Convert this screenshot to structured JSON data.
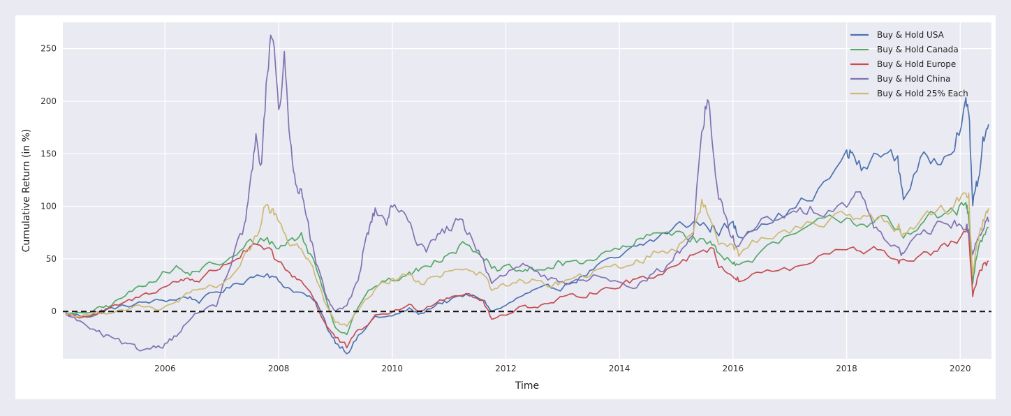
{
  "chart_data": {
    "type": "line",
    "title": "",
    "xlabel": "Time",
    "ylabel": "Cumulative Return (in %)",
    "xlim": [
      2004.2,
      2020.55
    ],
    "ylim": [
      -45,
      275
    ],
    "x_ticks": [
      2006,
      2008,
      2010,
      2012,
      2014,
      2016,
      2018,
      2020
    ],
    "x_tick_labels": [
      "2006",
      "2008",
      "2010",
      "2012",
      "2014",
      "2016",
      "2018",
      "2020"
    ],
    "y_ticks": [
      0,
      50,
      100,
      150,
      200,
      250
    ],
    "y_tick_labels": [
      "0",
      "50",
      "100",
      "150",
      "200",
      "250"
    ],
    "grid": true,
    "reference_line": {
      "y": 0,
      "style": "dashed",
      "color": "#111111"
    },
    "legend_position": "top-right",
    "series": [
      {
        "name": "Buy & Hold USA",
        "color": "#4c72b0",
        "x": [
          2004.25,
          2004.5,
          2004.8,
          2005.0,
          2005.3,
          2005.6,
          2005.9,
          2006.2,
          2006.4,
          2006.6,
          2006.9,
          2007.2,
          2007.5,
          2007.8,
          2008.0,
          2008.2,
          2008.5,
          2008.7,
          2008.85,
          2009.0,
          2009.2,
          2009.4,
          2009.7,
          2010.0,
          2010.3,
          2010.5,
          2010.8,
          2011.0,
          2011.3,
          2011.6,
          2011.75,
          2012.0,
          2012.3,
          2012.5,
          2012.8,
          2013.0,
          2013.3,
          2013.6,
          2014.0,
          2014.3,
          2014.6,
          2015.0,
          2015.3,
          2015.6,
          2015.75,
          2016.0,
          2016.1,
          2016.5,
          2017.0,
          2017.5,
          2018.0,
          2018.1,
          2018.3,
          2018.6,
          2018.9,
          2019.0,
          2019.3,
          2019.6,
          2019.9,
          2020.1,
          2020.15,
          2020.22,
          2020.3,
          2020.4,
          2020.5
        ],
        "values": [
          -2,
          -4,
          -3,
          2,
          5,
          8,
          10,
          12,
          14,
          10,
          18,
          24,
          33,
          38,
          28,
          22,
          15,
          5,
          -15,
          -28,
          -37,
          -25,
          -5,
          -5,
          2,
          -3,
          8,
          10,
          15,
          12,
          0,
          5,
          15,
          18,
          22,
          24,
          32,
          42,
          50,
          60,
          68,
          80,
          85,
          80,
          78,
          82,
          72,
          88,
          95,
          115,
          145,
          150,
          132,
          155,
          142,
          110,
          140,
          145,
          168,
          192,
          195,
          100,
          120,
          165,
          178
        ]
      },
      {
        "name": "Buy & Hold Canada",
        "color": "#55a868",
        "x": [
          2004.25,
          2004.5,
          2004.8,
          2005.0,
          2005.3,
          2005.6,
          2005.9,
          2006.2,
          2006.4,
          2006.6,
          2006.9,
          2007.2,
          2007.5,
          2007.8,
          2008.0,
          2008.2,
          2008.4,
          2008.6,
          2008.8,
          2009.0,
          2009.2,
          2009.4,
          2009.7,
          2010.0,
          2010.3,
          2010.5,
          2010.8,
          2011.0,
          2011.3,
          2011.6,
          2011.75,
          2012.0,
          2012.3,
          2012.5,
          2012.8,
          2013.0,
          2013.3,
          2013.6,
          2014.0,
          2014.3,
          2014.6,
          2015.0,
          2015.3,
          2015.6,
          2015.75,
          2016.0,
          2016.1,
          2016.5,
          2017.0,
          2017.5,
          2018.0,
          2018.3,
          2018.6,
          2018.9,
          2019.0,
          2019.3,
          2019.6,
          2019.9,
          2020.1,
          2020.15,
          2020.22,
          2020.3,
          2020.4,
          2020.5
        ],
        "values": [
          -2,
          -3,
          2,
          5,
          15,
          25,
          35,
          42,
          35,
          40,
          45,
          50,
          65,
          70,
          60,
          68,
          72,
          50,
          20,
          -15,
          -20,
          5,
          25,
          30,
          35,
          40,
          50,
          58,
          65,
          55,
          38,
          40,
          38,
          40,
          42,
          45,
          48,
          52,
          58,
          65,
          72,
          78,
          70,
          65,
          55,
          50,
          42,
          55,
          70,
          82,
          90,
          85,
          88,
          75,
          70,
          88,
          90,
          95,
          100,
          90,
          25,
          55,
          72,
          80
        ]
      },
      {
        "name": "Buy & Hold Europe",
        "color": "#c44e52",
        "x": [
          2004.25,
          2004.5,
          2004.8,
          2005.0,
          2005.3,
          2005.6,
          2005.9,
          2006.2,
          2006.4,
          2006.6,
          2006.9,
          2007.2,
          2007.5,
          2007.8,
          2008.0,
          2008.2,
          2008.4,
          2008.6,
          2008.8,
          2009.0,
          2009.2,
          2009.4,
          2009.7,
          2010.0,
          2010.3,
          2010.5,
          2010.8,
          2011.0,
          2011.3,
          2011.6,
          2011.75,
          2012.0,
          2012.3,
          2012.5,
          2012.8,
          2013.0,
          2013.3,
          2013.6,
          2014.0,
          2014.3,
          2014.6,
          2015.0,
          2015.3,
          2015.6,
          2015.75,
          2016.0,
          2016.1,
          2016.5,
          2017.0,
          2017.5,
          2018.0,
          2018.3,
          2018.6,
          2018.9,
          2019.0,
          2019.3,
          2019.6,
          2019.9,
          2020.1,
          2020.15,
          2020.22,
          2020.3,
          2020.4,
          2020.5
        ],
        "values": [
          -3,
          -5,
          -2,
          2,
          8,
          15,
          22,
          28,
          32,
          30,
          40,
          50,
          60,
          58,
          45,
          35,
          30,
          15,
          -10,
          -25,
          -35,
          -20,
          -5,
          0,
          5,
          2,
          10,
          15,
          18,
          10,
          -8,
          -2,
          5,
          5,
          8,
          12,
          15,
          20,
          25,
          30,
          35,
          45,
          55,
          62,
          45,
          35,
          30,
          38,
          40,
          50,
          60,
          55,
          58,
          50,
          45,
          55,
          58,
          65,
          75,
          70,
          15,
          30,
          42,
          48
        ]
      },
      {
        "name": "Buy & Hold China",
        "color": "#8172b2",
        "x": [
          2004.25,
          2004.5,
          2004.8,
          2005.0,
          2005.3,
          2005.5,
          2005.8,
          2006.0,
          2006.2,
          2006.4,
          2006.6,
          2006.9,
          2007.0,
          2007.2,
          2007.4,
          2007.5,
          2007.6,
          2007.7,
          2007.8,
          2007.9,
          2008.0,
          2008.1,
          2008.2,
          2008.3,
          2008.4,
          2008.5,
          2008.6,
          2008.75,
          2008.85,
          2009.0,
          2009.2,
          2009.4,
          2009.5,
          2009.6,
          2009.7,
          2009.9,
          2010.0,
          2010.2,
          2010.4,
          2010.6,
          2010.8,
          2011.0,
          2011.2,
          2011.4,
          2011.6,
          2011.75,
          2012.0,
          2012.3,
          2012.5,
          2012.8,
          2013.0,
          2013.3,
          2013.6,
          2014.0,
          2014.3,
          2014.6,
          2014.9,
          2015.1,
          2015.3,
          2015.45,
          2015.55,
          2015.65,
          2015.75,
          2015.9,
          2016.0,
          2016.1,
          2016.5,
          2017.0,
          2017.3,
          2017.6,
          2018.0,
          2018.2,
          2018.4,
          2018.6,
          2018.9,
          2019.0,
          2019.3,
          2019.6,
          2019.9,
          2020.1,
          2020.15,
          2020.22,
          2020.3,
          2020.4,
          2020.5
        ],
        "values": [
          -2,
          -10,
          -20,
          -25,
          -32,
          -38,
          -33,
          -30,
          -22,
          -10,
          0,
          5,
          20,
          50,
          80,
          120,
          160,
          140,
          230,
          270,
          200,
          235,
          160,
          130,
          110,
          95,
          60,
          30,
          10,
          0,
          5,
          30,
          60,
          80,
          95,
          85,
          100,
          90,
          70,
          60,
          75,
          80,
          85,
          70,
          50,
          25,
          35,
          45,
          35,
          30,
          25,
          30,
          35,
          30,
          25,
          35,
          45,
          60,
          80,
          170,
          205,
          150,
          110,
          80,
          70,
          60,
          85,
          90,
          95,
          100,
          105,
          115,
          90,
          75,
          60,
          55,
          70,
          80,
          85,
          80,
          75,
          55,
          70,
          80,
          85
        ]
      },
      {
        "name": "Buy & Hold 25% Each",
        "color": "#ccb974",
        "x": [
          2004.25,
          2004.5,
          2004.8,
          2005.0,
          2005.3,
          2005.6,
          2005.9,
          2006.2,
          2006.4,
          2006.6,
          2006.9,
          2007.2,
          2007.5,
          2007.7,
          2007.8,
          2007.9,
          2008.0,
          2008.2,
          2008.4,
          2008.6,
          2008.8,
          2009.0,
          2009.2,
          2009.4,
          2009.7,
          2010.0,
          2010.3,
          2010.5,
          2010.8,
          2011.0,
          2011.3,
          2011.6,
          2011.75,
          2012.0,
          2012.3,
          2012.5,
          2012.8,
          2013.0,
          2013.3,
          2013.6,
          2014.0,
          2014.3,
          2014.6,
          2015.0,
          2015.3,
          2015.45,
          2015.6,
          2015.75,
          2016.0,
          2016.1,
          2016.5,
          2017.0,
          2017.5,
          2018.0,
          2018.3,
          2018.6,
          2018.9,
          2019.0,
          2019.3,
          2019.6,
          2019.9,
          2020.1,
          2020.15,
          2020.22,
          2020.3,
          2020.4,
          2020.5
        ],
        "values": [
          -2,
          -4,
          -2,
          0,
          2,
          5,
          0,
          10,
          15,
          20,
          25,
          35,
          60,
          80,
          105,
          95,
          85,
          65,
          60,
          40,
          10,
          -10,
          -15,
          0,
          20,
          30,
          35,
          25,
          35,
          40,
          42,
          35,
          20,
          25,
          30,
          28,
          25,
          28,
          32,
          38,
          42,
          48,
          55,
          60,
          80,
          105,
          85,
          70,
          65,
          55,
          70,
          75,
          85,
          95,
          88,
          90,
          80,
          75,
          85,
          95,
          100,
          115,
          110,
          35,
          65,
          85,
          98
        ]
      }
    ]
  }
}
